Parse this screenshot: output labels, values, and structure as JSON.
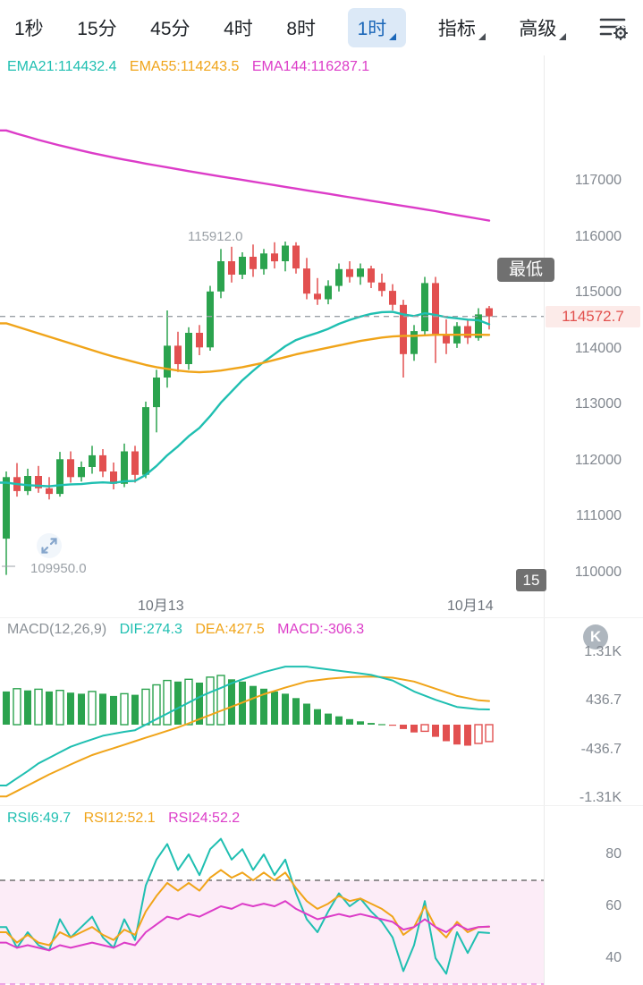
{
  "toolbar": {
    "tabs": [
      {
        "label": "1秒",
        "selected": false
      },
      {
        "label": "15分",
        "selected": false
      },
      {
        "label": "45分",
        "selected": false
      },
      {
        "label": "4时",
        "selected": false
      },
      {
        "label": "8时",
        "selected": false
      },
      {
        "label": "1时",
        "selected": true
      },
      {
        "label": "指标",
        "selected": false
      },
      {
        "label": "高级",
        "selected": false
      }
    ],
    "settings_icon": "sliders-gear-icon"
  },
  "colors": {
    "up": "#2BA34E",
    "down": "#E25050",
    "teal": "#1FBFB1",
    "orange": "#F0A419",
    "magenta": "#DC3CC8",
    "dash": "#9AA0A6",
    "band": "rgba(233,110,190,0.13)",
    "selected_tab_text": "#1B67B9",
    "selected_tab_bg": "#DCE9F7",
    "price_tag_text": "#E2514E",
    "price_tag_bg": "#FCEBE9"
  },
  "main_chart": {
    "legend": {
      "ema21": "EMA21:114432.4",
      "ema55": "EMA55:114243.5",
      "ema144": "EMA144:116287.1"
    },
    "y_axis_labels": [
      "117000",
      "116000",
      "115000",
      "114000",
      "113000",
      "112000",
      "111000",
      "110000"
    ],
    "x_axis_labels": [
      "10月13",
      "10月14"
    ],
    "current_price": "114572.7",
    "high_label": "115912.0",
    "low_label": "109950.0",
    "low_dash": "—",
    "tooltip": "最低",
    "badge": "15"
  },
  "macd_panel": {
    "title": "MACD(12,26,9)",
    "dif_label": "DIF:274.3",
    "dea_label": "DEA:427.5",
    "macd_label": "MACD:-306.3",
    "y_axis_labels": [
      "1.31K",
      "436.7",
      "-436.7",
      "-1.31K"
    ],
    "k_badge": "K"
  },
  "rsi_panel": {
    "rsi6_label": "RSI6:49.7",
    "rsi12_label": "RSI12:52.1",
    "rsi24_label": "RSI24:52.2",
    "y_axis_labels": [
      "80",
      "60",
      "40"
    ]
  },
  "chart_data": [
    {
      "type": "candlestick",
      "timeframe": "1时",
      "y_ticks": [
        117000,
        116000,
        115000,
        114000,
        113000,
        112000,
        111000,
        110000
      ],
      "x_ticks": [
        "10月13",
        "10月14"
      ],
      "last_price": 114572.7,
      "high_marker": 115912.0,
      "low_marker": 109950.0,
      "ohlc": [
        [
          110600,
          111800,
          109950,
          111700
        ],
        [
          111700,
          111950,
          111350,
          111450
        ],
        [
          111450,
          111850,
          111380,
          111720
        ],
        [
          111720,
          111900,
          111420,
          111500
        ],
        [
          111500,
          111700,
          111300,
          111400
        ],
        [
          111400,
          112150,
          111350,
          112020
        ],
        [
          112020,
          112160,
          111600,
          111700
        ],
        [
          111700,
          111980,
          111620,
          111880
        ],
        [
          111880,
          112260,
          111760,
          112090
        ],
        [
          112090,
          112200,
          111700,
          111800
        ],
        [
          111800,
          111960,
          111480,
          111580
        ],
        [
          111580,
          112300,
          111520,
          112160
        ],
        [
          112160,
          112260,
          111600,
          111740
        ],
        [
          111740,
          113050,
          111680,
          112950
        ],
        [
          112950,
          113620,
          112500,
          113480
        ],
        [
          113480,
          114680,
          113300,
          114050
        ],
        [
          114050,
          114300,
          113580,
          113720
        ],
        [
          113720,
          114380,
          113620,
          114280
        ],
        [
          114280,
          114420,
          113880,
          114020
        ],
        [
          114020,
          115120,
          113960,
          115020
        ],
        [
          115020,
          115780,
          114900,
          115560
        ],
        [
          115560,
          115820,
          115180,
          115320
        ],
        [
          115320,
          115720,
          115240,
          115640
        ],
        [
          115640,
          115860,
          115280,
          115420
        ],
        [
          115420,
          115780,
          115320,
          115700
        ],
        [
          115700,
          115900,
          115430,
          115560
        ],
        [
          115560,
          115912,
          115380,
          115840
        ],
        [
          115840,
          115900,
          115340,
          115430
        ],
        [
          115430,
          115620,
          114880,
          114980
        ],
        [
          114980,
          115260,
          114780,
          114880
        ],
        [
          114880,
          115220,
          114790,
          115120
        ],
        [
          115120,
          115520,
          115020,
          115420
        ],
        [
          115420,
          115560,
          115180,
          115280
        ],
        [
          115280,
          115520,
          115140,
          115430
        ],
        [
          115430,
          115480,
          115080,
          115180
        ],
        [
          115180,
          115340,
          114930,
          115030
        ],
        [
          115030,
          115150,
          114680,
          114780
        ],
        [
          114780,
          114870,
          113480,
          113900
        ],
        [
          113900,
          114420,
          113780,
          114310
        ],
        [
          114310,
          115280,
          114220,
          115170
        ],
        [
          115170,
          115280,
          113740,
          114260
        ],
        [
          114260,
          114520,
          113900,
          114090
        ],
        [
          114090,
          114470,
          114010,
          114400
        ],
        [
          114400,
          114520,
          114080,
          114190
        ],
        [
          114190,
          114720,
          114140,
          114610
        ],
        [
          114720,
          114760,
          114340,
          114572.7
        ]
      ],
      "overlays": [
        {
          "name": "EMA21",
          "color": "#1FBFB1",
          "last": 114432.4,
          "values": [
            111600,
            111575,
            111555,
            111545,
            111535,
            111555,
            111570,
            111575,
            111595,
            111605,
            111595,
            111625,
            111630,
            111740,
            111900,
            112090,
            112250,
            112430,
            112580,
            112790,
            113030,
            113230,
            113430,
            113600,
            113760,
            113900,
            114040,
            114150,
            114220,
            114280,
            114350,
            114440,
            114510,
            114570,
            114620,
            114650,
            114655,
            114610,
            114580,
            114630,
            114600,
            114560,
            114540,
            114515,
            114505,
            114432.4
          ]
        },
        {
          "name": "EMA55",
          "color": "#F0A419",
          "last": 114243.5,
          "values": [
            114450,
            114390,
            114330,
            114270,
            114210,
            114150,
            114090,
            114030,
            113970,
            113910,
            113855,
            113805,
            113755,
            113705,
            113665,
            113635,
            113605,
            113585,
            113575,
            113585,
            113605,
            113635,
            113665,
            113705,
            113745,
            113795,
            113845,
            113895,
            113935,
            113975,
            114015,
            114055,
            114095,
            114135,
            114165,
            114195,
            114215,
            114225,
            114225,
            114235,
            114245,
            114245,
            114245,
            114245,
            114245,
            114243.5
          ]
        },
        {
          "name": "EMA144",
          "color": "#DC3CC8",
          "last": 116287.1,
          "values": [
            117900,
            117840,
            117785,
            117730,
            117680,
            117630,
            117585,
            117540,
            117495,
            117455,
            117415,
            117378,
            117342,
            117306,
            117272,
            117238,
            117205,
            117172,
            117140,
            117108,
            117076,
            117045,
            117014,
            116983,
            116952,
            116921,
            116890,
            116859,
            116828,
            116797,
            116766,
            116735,
            116704,
            116673,
            116642,
            116611,
            116580,
            116549,
            116518,
            116487,
            116456,
            116420,
            116385,
            116353,
            116320,
            116287.1
          ]
        }
      ]
    },
    {
      "type": "bar",
      "name": "MACD(12,26,9)",
      "dif": 274.3,
      "dea": 427.5,
      "macd": -306.3,
      "y_ticks": [
        1310,
        436.7,
        -436.7,
        -1310
      ],
      "histogram": [
        600,
        650,
        620,
        640,
        600,
        620,
        580,
        560,
        600,
        560,
        520,
        560,
        540,
        640,
        720,
        800,
        780,
        820,
        760,
        860,
        890,
        820,
        780,
        700,
        650,
        600,
        560,
        480,
        380,
        280,
        200,
        150,
        100,
        60,
        30,
        10,
        -20,
        -80,
        -140,
        -120,
        -220,
        -300,
        -360,
        -380,
        -340,
        -306.3
      ],
      "dif_series": [
        -1100,
        -970,
        -840,
        -700,
        -600,
        -500,
        -400,
        -330,
        -265,
        -200,
        -165,
        -130,
        -100,
        0,
        100,
        200,
        300,
        400,
        500,
        585,
        665,
        750,
        820,
        885,
        950,
        1000,
        1050,
        1050,
        1050,
        1025,
        1000,
        975,
        950,
        925,
        900,
        850,
        800,
        700,
        600,
        525,
        450,
        385,
        320,
        300,
        280,
        274.3
      ],
      "dea_series": [
        -1300,
        -1200,
        -1100,
        -1000,
        -900,
        -810,
        -720,
        -635,
        -550,
        -487,
        -425,
        -362,
        -300,
        -237,
        -175,
        -112,
        -50,
        25,
        100,
        175,
        250,
        325,
        400,
        475,
        550,
        610,
        670,
        725,
        780,
        805,
        830,
        845,
        860,
        865,
        870,
        860,
        850,
        815,
        780,
        715,
        650,
        585,
        520,
        480,
        440,
        427.5
      ]
    },
    {
      "type": "line",
      "name": "RSI",
      "y_ticks": [
        80,
        60,
        40
      ],
      "overbought_line": 70,
      "oversold_line": 30,
      "band": [
        30,
        70
      ],
      "series": [
        {
          "name": "RSI6",
          "color": "#1FBFB1",
          "last": 49.7,
          "values": [
            52,
            44,
            50,
            45,
            43,
            55,
            48,
            52,
            56,
            48,
            44,
            55,
            47,
            68,
            78,
            84,
            74,
            80,
            72,
            82,
            86,
            78,
            82,
            74,
            80,
            72,
            78,
            65,
            55,
            50,
            58,
            65,
            60,
            63,
            58,
            54,
            48,
            35,
            45,
            62,
            40,
            34,
            50,
            42,
            50,
            49.7
          ]
        },
        {
          "name": "RSI12",
          "color": "#F0A419",
          "last": 52.1,
          "values": [
            50,
            46,
            49,
            46,
            45,
            50,
            48,
            50,
            52,
            49,
            47,
            51,
            49,
            58,
            64,
            69,
            66,
            69,
            66,
            71,
            74,
            71,
            73,
            70,
            73,
            70,
            73,
            67,
            62,
            59,
            61,
            64,
            62,
            63,
            61,
            59,
            56,
            49,
            52,
            60,
            52,
            48,
            54,
            50,
            52,
            52.1
          ]
        },
        {
          "name": "RSI24",
          "color": "#DC3CC8",
          "last": 52.2,
          "values": [
            46,
            44,
            45,
            44,
            43,
            45,
            44,
            45,
            46,
            45,
            44,
            46,
            45,
            50,
            53,
            56,
            55,
            57,
            56,
            58,
            60,
            59,
            61,
            60,
            61,
            60,
            62,
            59,
            57,
            55,
            56,
            57,
            56,
            57,
            56,
            55,
            54,
            51,
            52,
            55,
            52,
            50,
            53,
            51,
            52,
            52.2
          ]
        }
      ]
    }
  ]
}
